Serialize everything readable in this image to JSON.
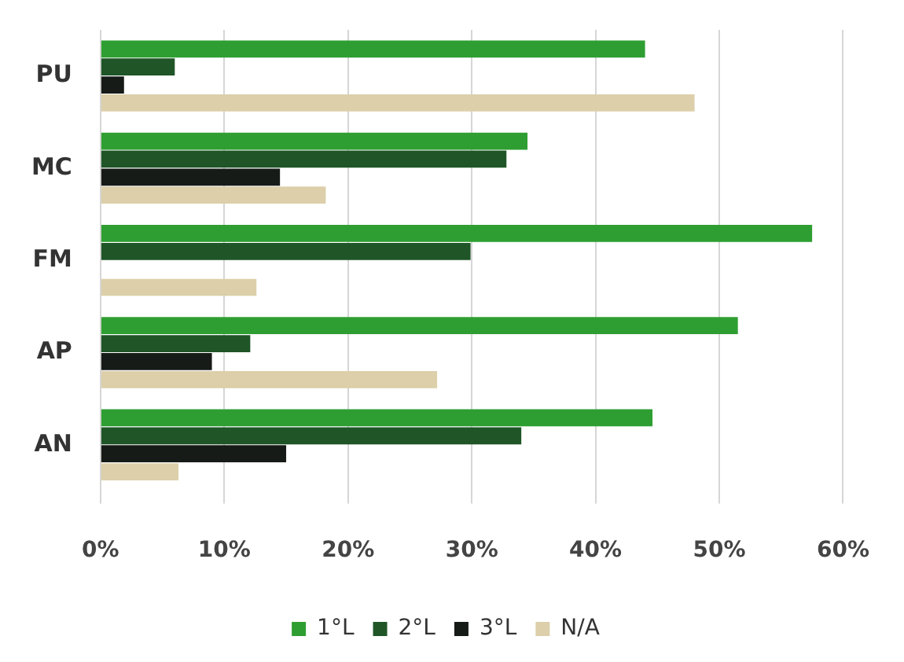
{
  "chart_data": {
    "type": "bar",
    "orientation": "horizontal",
    "categories": [
      "PU",
      "MC",
      "FM",
      "AP",
      "AN"
    ],
    "series": [
      {
        "name": "1°L",
        "color": "#2f9e32",
        "values": [
          44.0,
          34.5,
          57.5,
          51.5,
          44.6
        ]
      },
      {
        "name": "2°L",
        "color": "#1f5527",
        "values": [
          6.0,
          32.8,
          29.9,
          12.1,
          34.0
        ]
      },
      {
        "name": "3°L",
        "color": "#171b17",
        "values": [
          1.9,
          14.5,
          0,
          9.0,
          15.0
        ]
      },
      {
        "name": "N/A",
        "color": "#dccfa9",
        "values": [
          48.0,
          18.2,
          12.6,
          27.2,
          6.3
        ]
      }
    ],
    "xlim": [
      0,
      60
    ],
    "xticks": [
      {
        "value": 0,
        "label": "0%"
      },
      {
        "value": 10,
        "label": "10%"
      },
      {
        "value": 20,
        "label": "20%"
      },
      {
        "value": 30,
        "label": "30%"
      },
      {
        "value": 40,
        "label": "40%"
      },
      {
        "value": 50,
        "label": "50%"
      },
      {
        "value": 60,
        "label": "60%"
      }
    ],
    "grid": "x",
    "legend": "bottom"
  }
}
